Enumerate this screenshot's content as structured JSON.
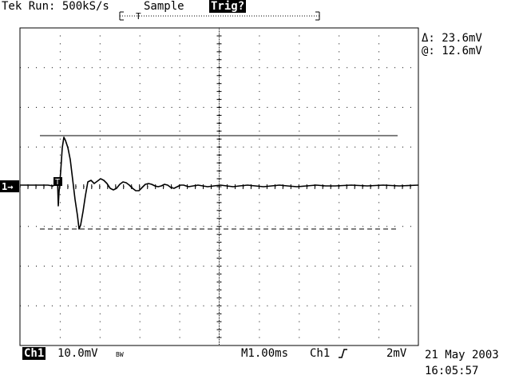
{
  "header": {
    "status": "Tek Run: 500kS/s",
    "mode": "Sample",
    "trigger_status": "Trig?"
  },
  "cursor_readout": {
    "delta": "Δ: 23.6mV",
    "at": "@: 12.6mV"
  },
  "channel_marker": "1→",
  "trigger_marker": "T",
  "footer": {
    "channel": "Ch1",
    "scale": "10.0mV",
    "bw": "BW",
    "timebase": "M1.00ms",
    "trigger_source": "Ch1",
    "trigger_slope_icon": "rising-edge-icon",
    "trigger_level": "2mV",
    "date": "21 May 2003",
    "time": "16:05:57"
  }
}
